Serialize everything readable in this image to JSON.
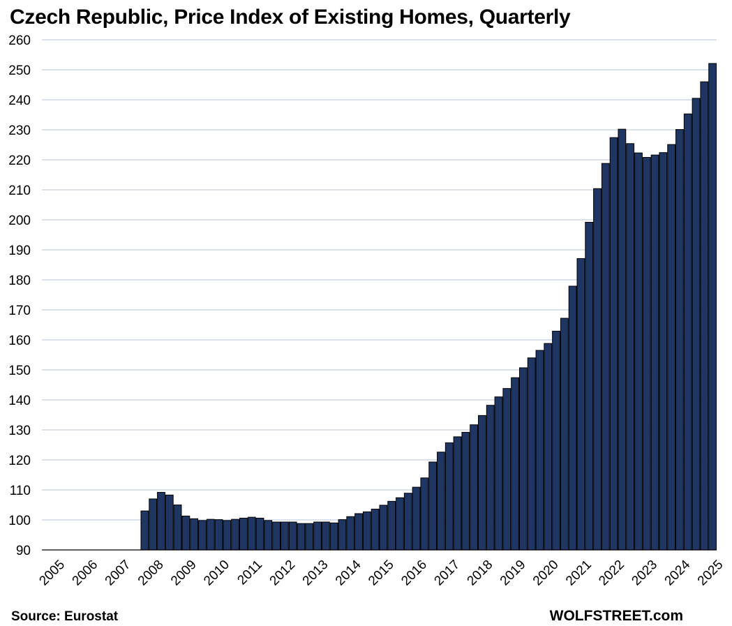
{
  "source": "Source: Eurostat",
  "watermark": "WOLFSTREET.com",
  "chart_data": {
    "type": "bar",
    "title": "Czech Republic, Price Index of Existing Homes, Quarterly",
    "xlabel": "",
    "ylabel": "",
    "ylim": [
      90,
      260
    ],
    "yticks": [
      90,
      100,
      110,
      120,
      130,
      140,
      150,
      160,
      170,
      180,
      190,
      200,
      210,
      220,
      230,
      240,
      250,
      260
    ],
    "grid": true,
    "year_labels": [
      "2005",
      "2006",
      "2007",
      "2008",
      "2009",
      "2010",
      "2011",
      "2012",
      "2013",
      "2014",
      "2015",
      "2016",
      "2017",
      "2018",
      "2019",
      "2020",
      "2021",
      "2022",
      "2023",
      "2024",
      "2025"
    ],
    "bar_color": "#1f3663",
    "series": [
      {
        "name": "Price Index of Existing Homes",
        "values": [
          null,
          null,
          null,
          null,
          null,
          null,
          null,
          null,
          null,
          null,
          null,
          null,
          103,
          107,
          109.2,
          108.3,
          105,
          101.3,
          100.4,
          99.8,
          100.2,
          100.1,
          99.8,
          100.2,
          100.6,
          100.9,
          100.6,
          99.8,
          99.3,
          99.3,
          99.3,
          98.8,
          98.8,
          99.3,
          99.3,
          99,
          100.1,
          101.1,
          102.1,
          102.7,
          103.6,
          104.9,
          106.2,
          107.4,
          108.9,
          110.9,
          114,
          119.3,
          122.6,
          125.7,
          127.7,
          129.2,
          131.7,
          134.8,
          138.2,
          141,
          143.8,
          147.4,
          150.7,
          154,
          156.5,
          158.8,
          162.9,
          167.2,
          177.9,
          187.1,
          199.2,
          210.4,
          218.8,
          227.4,
          230.2,
          225.4,
          222.3,
          220.8,
          221.6,
          222.4,
          225.1,
          230.1,
          235.3,
          240.5,
          246,
          252.1
        ]
      }
    ]
  }
}
